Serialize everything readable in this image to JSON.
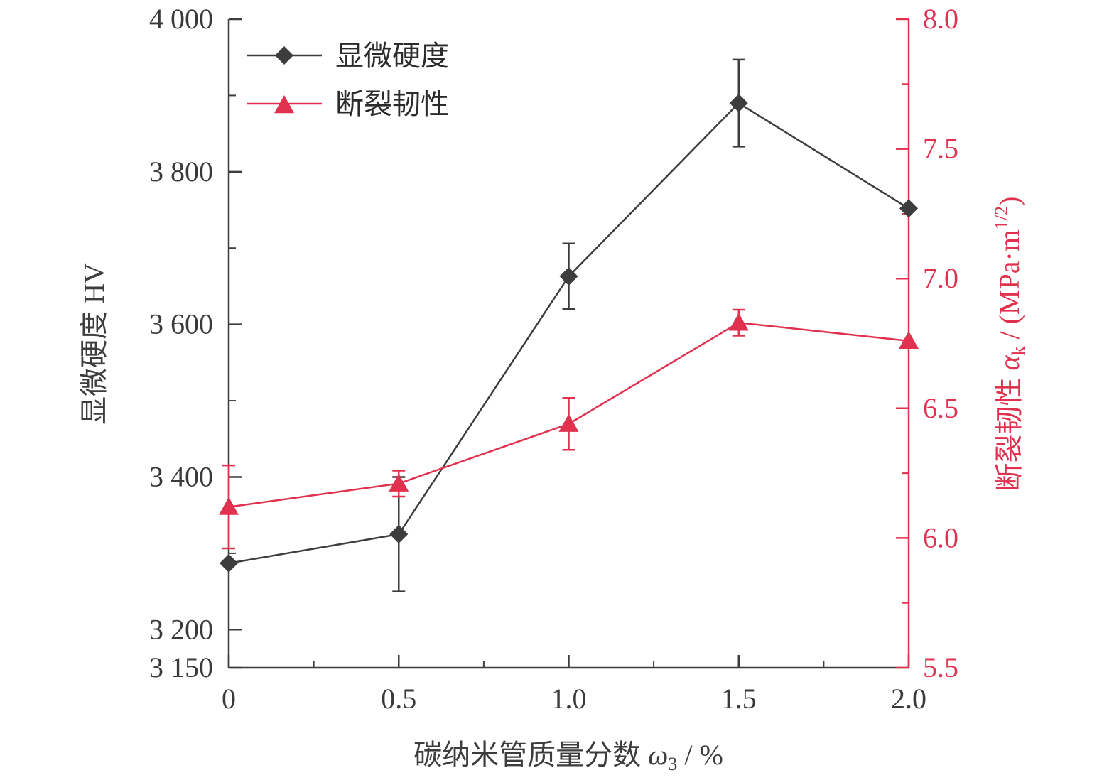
{
  "chart_data": {
    "type": "line",
    "xlabel": "碳纳米管质量分数",
    "xlabel_symbol": "ω",
    "xlabel_sub": "3",
    "xlabel_unit": " / %",
    "ylabel_left": "显微硬度 HV",
    "ylabel_right_pre": "断裂韧性 ",
    "ylabel_right_symbol": "α",
    "ylabel_right_sub": "k",
    "ylabel_right_unit": " / (MPa·m",
    "ylabel_right_sup": "1/2",
    "ylabel_right_close": ")",
    "x": [
      0,
      0.5,
      1.0,
      1.5,
      2.0
    ],
    "x_tick_labels": [
      "0",
      "0.5",
      "1.0",
      "1.5",
      "2.0"
    ],
    "xlim": [
      0,
      2.0
    ],
    "ylim_left": [
      3150,
      4000
    ],
    "y_left_tick_values": [
      3150,
      3200,
      3400,
      3600,
      3800,
      4000
    ],
    "y_left_tick_labels": [
      "3 150",
      "3 200",
      "3 400",
      "3 600",
      "3 800",
      "4 000"
    ],
    "ylim_right": [
      5.5,
      8.0
    ],
    "y_right_tick_values": [
      5.5,
      6.0,
      6.5,
      7.0,
      7.5,
      8.0
    ],
    "y_right_tick_labels": [
      "5.5",
      "6.0",
      "6.5",
      "7.0",
      "7.5",
      "8.0"
    ],
    "legend_position": "top-left",
    "grid": false,
    "series": [
      {
        "name": "显微硬度",
        "axis": "left",
        "marker": "diamond",
        "color": "#3d3d3d",
        "values": [
          3287,
          3325,
          3663,
          3890,
          3752
        ],
        "error": [
          0,
          75,
          43,
          57,
          0
        ]
      },
      {
        "name": "断裂韧性",
        "axis": "right",
        "marker": "triangle",
        "color": "#e0324f",
        "values": [
          6.12,
          6.21,
          6.44,
          6.83,
          6.76
        ],
        "error": [
          0.16,
          0.05,
          0.1,
          0.05,
          0
        ]
      }
    ]
  },
  "colors": {
    "left_axis": "#3d3d3d",
    "right_axis": "#e0324f"
  }
}
